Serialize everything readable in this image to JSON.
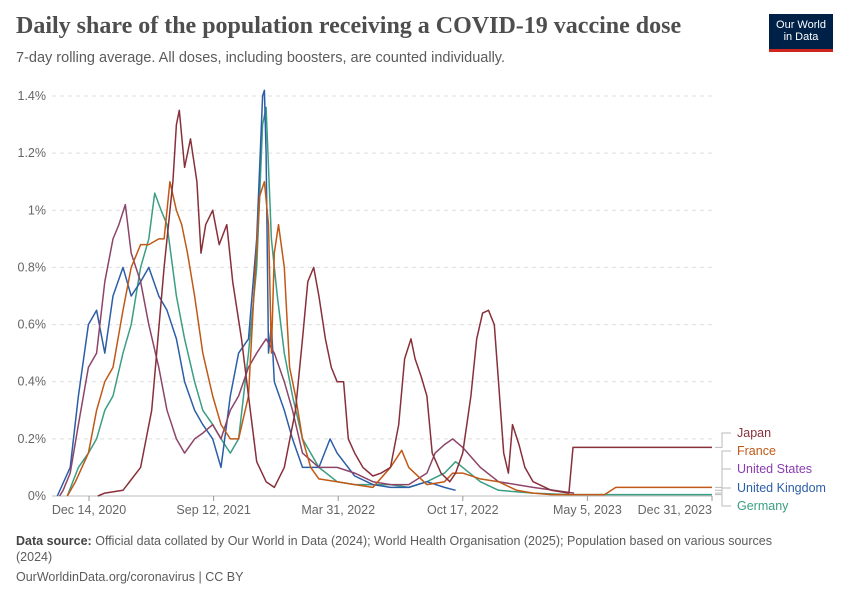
{
  "header": {
    "title": "Daily share of the population receiving a COVID-19 vaccine dose",
    "subtitle": "7-day rolling average. All doses, including boosters, are counted individually.",
    "logo_line1": "Our World",
    "logo_line2": "in Data"
  },
  "footer": {
    "source_label": "Data source:",
    "source_text": "Official data collated by Our World in Data (2024); World Health Organisation (2025); Population based on various sources (2024)",
    "url_line": "OurWorldinData.org/coronavirus | CC BY"
  },
  "colors": {
    "Japan": "#883039",
    "France": "#c05917",
    "United States": "#8c4569",
    "United Kingdom": "#2c5ea8",
    "Germany": "#3a9e83",
    "United States legend": "#8a3db0"
  },
  "chart_data": {
    "type": "line",
    "ylabel": "",
    "xlabel": "",
    "ylim": [
      0,
      1.4
    ],
    "y_unit": "%",
    "xlim": [
      "2020-12-01",
      "2023-12-31"
    ],
    "y_ticks": [
      "0%",
      "0.2%",
      "0.4%",
      "0.6%",
      "0.8%",
      "1%",
      "1.2%",
      "1.4%"
    ],
    "x_ticks": [
      "Dec 14, 2020",
      "Sep 12, 2021",
      "Mar 31, 2022",
      "Oct 17, 2022",
      "May 5, 2023",
      "Dec 31, 2023"
    ],
    "grid": "horizontal dashed",
    "legend_placement": "right",
    "series": [
      {
        "name": "Japan",
        "points": [
          [
            "2021-02-17",
            0
          ],
          [
            "2021-03-01",
            0.01
          ],
          [
            "2021-04-01",
            0.02
          ],
          [
            "2021-05-01",
            0.1
          ],
          [
            "2021-05-20",
            0.3
          ],
          [
            "2021-06-10",
            0.8
          ],
          [
            "2021-06-25",
            1.1
          ],
          [
            "2021-07-01",
            1.3
          ],
          [
            "2021-07-06",
            1.35
          ],
          [
            "2021-07-15",
            1.15
          ],
          [
            "2021-07-25",
            1.25
          ],
          [
            "2021-08-05",
            1.1
          ],
          [
            "2021-08-12",
            0.85
          ],
          [
            "2021-08-20",
            0.95
          ],
          [
            "2021-09-01",
            1.0
          ],
          [
            "2021-09-12",
            0.88
          ],
          [
            "2021-09-25",
            0.95
          ],
          [
            "2021-10-05",
            0.75
          ],
          [
            "2021-10-20",
            0.55
          ],
          [
            "2021-11-01",
            0.35
          ],
          [
            "2021-11-15",
            0.12
          ],
          [
            "2021-12-01",
            0.05
          ],
          [
            "2021-12-15",
            0.03
          ],
          [
            "2022-01-01",
            0.1
          ],
          [
            "2022-01-20",
            0.3
          ],
          [
            "2022-02-01",
            0.55
          ],
          [
            "2022-02-10",
            0.75
          ],
          [
            "2022-02-20",
            0.8
          ],
          [
            "2022-03-01",
            0.7
          ],
          [
            "2022-03-12",
            0.55
          ],
          [
            "2022-03-22",
            0.45
          ],
          [
            "2022-04-01",
            0.4
          ],
          [
            "2022-04-12",
            0.4
          ],
          [
            "2022-04-20",
            0.2
          ],
          [
            "2022-05-01",
            0.15
          ],
          [
            "2022-05-15",
            0.1
          ],
          [
            "2022-06-01",
            0.07
          ],
          [
            "2022-06-15",
            0.08
          ],
          [
            "2022-07-01",
            0.1
          ],
          [
            "2022-07-15",
            0.25
          ],
          [
            "2022-07-25",
            0.48
          ],
          [
            "2022-08-05",
            0.55
          ],
          [
            "2022-08-12",
            0.48
          ],
          [
            "2022-08-22",
            0.42
          ],
          [
            "2022-09-01",
            0.35
          ],
          [
            "2022-09-10",
            0.15
          ],
          [
            "2022-09-25",
            0.08
          ],
          [
            "2022-10-10",
            0.05
          ],
          [
            "2022-10-20",
            0.08
          ],
          [
            "2022-11-01",
            0.15
          ],
          [
            "2022-11-15",
            0.35
          ],
          [
            "2022-11-25",
            0.55
          ],
          [
            "2022-12-05",
            0.64
          ],
          [
            "2022-12-15",
            0.65
          ],
          [
            "2022-12-25",
            0.6
          ],
          [
            "2023-01-01",
            0.4
          ],
          [
            "2023-01-10",
            0.15
          ],
          [
            "2023-01-18",
            0.08
          ],
          [
            "2023-01-25",
            0.25
          ],
          [
            "2023-02-05",
            0.18
          ],
          [
            "2023-02-15",
            0.1
          ],
          [
            "2023-03-01",
            0.05
          ],
          [
            "2023-04-01",
            0.02
          ],
          [
            "2023-05-01",
            0.01
          ],
          [
            "2023-05-08",
            0.17
          ],
          [
            "2023-12-31",
            0.17
          ]
        ]
      },
      {
        "name": "France",
        "points": [
          [
            "2020-12-27",
            0
          ],
          [
            "2021-01-10",
            0.05
          ],
          [
            "2021-02-01",
            0.15
          ],
          [
            "2021-02-15",
            0.3
          ],
          [
            "2021-03-01",
            0.4
          ],
          [
            "2021-03-15",
            0.45
          ],
          [
            "2021-04-01",
            0.65
          ],
          [
            "2021-04-15",
            0.8
          ],
          [
            "2021-05-01",
            0.88
          ],
          [
            "2021-05-15",
            0.88
          ],
          [
            "2021-06-01",
            0.9
          ],
          [
            "2021-06-10",
            0.9
          ],
          [
            "2021-06-20",
            1.1
          ],
          [
            "2021-07-01",
            1.0
          ],
          [
            "2021-07-10",
            0.95
          ],
          [
            "2021-07-20",
            0.85
          ],
          [
            "2021-08-01",
            0.7
          ],
          [
            "2021-08-15",
            0.5
          ],
          [
            "2021-09-01",
            0.35
          ],
          [
            "2021-09-15",
            0.25
          ],
          [
            "2021-10-01",
            0.2
          ],
          [
            "2021-10-15",
            0.2
          ],
          [
            "2021-11-01",
            0.35
          ],
          [
            "2021-11-10",
            0.7
          ],
          [
            "2021-11-20",
            1.05
          ],
          [
            "2021-11-28",
            1.1
          ],
          [
            "2021-12-05",
            0.95
          ],
          [
            "2021-12-10",
            0.5
          ],
          [
            "2021-12-15",
            0.85
          ],
          [
            "2021-12-22",
            0.95
          ],
          [
            "2022-01-01",
            0.8
          ],
          [
            "2022-01-10",
            0.45
          ],
          [
            "2022-01-20",
            0.35
          ],
          [
            "2022-02-01",
            0.2
          ],
          [
            "2022-02-15",
            0.1
          ],
          [
            "2022-03-01",
            0.06
          ],
          [
            "2022-04-01",
            0.05
          ],
          [
            "2022-05-01",
            0.04
          ],
          [
            "2022-06-01",
            0.03
          ],
          [
            "2022-07-01",
            0.1
          ],
          [
            "2022-07-20",
            0.16
          ],
          [
            "2022-08-01",
            0.1
          ],
          [
            "2022-09-01",
            0.04
          ],
          [
            "2022-10-01",
            0.05
          ],
          [
            "2022-10-15",
            0.08
          ],
          [
            "2022-11-01",
            0.08
          ],
          [
            "2022-12-01",
            0.06
          ],
          [
            "2023-01-01",
            0.05
          ],
          [
            "2023-02-01",
            0.02
          ],
          [
            "2023-03-01",
            0.01
          ],
          [
            "2023-04-01",
            0.005
          ],
          [
            "2023-07-01",
            0.005
          ],
          [
            "2023-07-20",
            0.03
          ],
          [
            "2023-12-31",
            0.03
          ]
        ]
      },
      {
        "name": "United States",
        "points": [
          [
            "2020-12-14",
            0
          ],
          [
            "2020-12-20",
            0.02
          ],
          [
            "2021-01-01",
            0.08
          ],
          [
            "2021-01-15",
            0.25
          ],
          [
            "2021-02-01",
            0.45
          ],
          [
            "2021-02-15",
            0.5
          ],
          [
            "2021-03-01",
            0.75
          ],
          [
            "2021-03-15",
            0.9
          ],
          [
            "2021-03-25",
            0.95
          ],
          [
            "2021-04-05",
            1.02
          ],
          [
            "2021-04-15",
            0.85
          ],
          [
            "2021-05-01",
            0.75
          ],
          [
            "2021-05-15",
            0.6
          ],
          [
            "2021-06-01",
            0.45
          ],
          [
            "2021-06-15",
            0.3
          ],
          [
            "2021-07-01",
            0.2
          ],
          [
            "2021-07-15",
            0.15
          ],
          [
            "2021-08-01",
            0.2
          ],
          [
            "2021-08-15",
            0.22
          ],
          [
            "2021-09-01",
            0.25
          ],
          [
            "2021-09-15",
            0.2
          ],
          [
            "2021-10-01",
            0.3
          ],
          [
            "2021-10-15",
            0.35
          ],
          [
            "2021-11-01",
            0.45
          ],
          [
            "2021-11-15",
            0.5
          ],
          [
            "2021-12-01",
            0.55
          ],
          [
            "2021-12-15",
            0.5
          ],
          [
            "2022-01-01",
            0.4
          ],
          [
            "2022-01-15",
            0.3
          ],
          [
            "2022-02-01",
            0.15
          ],
          [
            "2022-03-01",
            0.1
          ],
          [
            "2022-04-01",
            0.1
          ],
          [
            "2022-05-01",
            0.08
          ],
          [
            "2022-06-01",
            0.05
          ],
          [
            "2022-07-01",
            0.04
          ],
          [
            "2022-08-01",
            0.04
          ],
          [
            "2022-09-01",
            0.08
          ],
          [
            "2022-09-15",
            0.15
          ],
          [
            "2022-10-01",
            0.18
          ],
          [
            "2022-10-15",
            0.2
          ],
          [
            "2022-11-01",
            0.17
          ],
          [
            "2022-12-01",
            0.1
          ],
          [
            "2023-01-01",
            0.05
          ],
          [
            "2023-03-01",
            0.03
          ],
          [
            "2023-05-10",
            0.01
          ]
        ]
      },
      {
        "name": "United Kingdom",
        "points": [
          [
            "2020-12-10",
            0
          ],
          [
            "2021-01-01",
            0.1
          ],
          [
            "2021-01-15",
            0.35
          ],
          [
            "2021-02-01",
            0.6
          ],
          [
            "2021-02-15",
            0.65
          ],
          [
            "2021-03-01",
            0.5
          ],
          [
            "2021-03-15",
            0.7
          ],
          [
            "2021-04-01",
            0.8
          ],
          [
            "2021-04-15",
            0.7
          ],
          [
            "2021-05-01",
            0.75
          ],
          [
            "2021-05-15",
            0.8
          ],
          [
            "2021-06-01",
            0.7
          ],
          [
            "2021-06-15",
            0.65
          ],
          [
            "2021-07-01",
            0.55
          ],
          [
            "2021-07-15",
            0.4
          ],
          [
            "2021-08-01",
            0.3
          ],
          [
            "2021-08-15",
            0.25
          ],
          [
            "2021-09-01",
            0.2
          ],
          [
            "2021-09-15",
            0.1
          ],
          [
            "2021-10-01",
            0.35
          ],
          [
            "2021-10-15",
            0.5
          ],
          [
            "2021-11-01",
            0.55
          ],
          [
            "2021-11-15",
            0.9
          ],
          [
            "2021-11-25",
            1.4
          ],
          [
            "2021-11-28",
            1.42
          ],
          [
            "2021-12-01",
            1.2
          ],
          [
            "2021-12-05",
            0.5
          ],
          [
            "2021-12-10",
            0.6
          ],
          [
            "2021-12-15",
            0.4
          ],
          [
            "2022-01-01",
            0.3
          ],
          [
            "2022-01-15",
            0.2
          ],
          [
            "2022-02-01",
            0.1
          ],
          [
            "2022-03-01",
            0.1
          ],
          [
            "2022-03-20",
            0.2
          ],
          [
            "2022-04-01",
            0.15
          ],
          [
            "2022-05-01",
            0.07
          ],
          [
            "2022-06-01",
            0.04
          ],
          [
            "2022-07-01",
            0.03
          ],
          [
            "2022-08-01",
            0.03
          ],
          [
            "2022-09-01",
            0.05
          ],
          [
            "2022-10-01",
            0.03
          ],
          [
            "2022-10-20",
            0.02
          ]
        ]
      },
      {
        "name": "Germany",
        "points": [
          [
            "2020-12-27",
            0
          ],
          [
            "2021-01-15",
            0.1
          ],
          [
            "2021-02-01",
            0.15
          ],
          [
            "2021-02-15",
            0.2
          ],
          [
            "2021-03-01",
            0.3
          ],
          [
            "2021-03-15",
            0.35
          ],
          [
            "2021-04-01",
            0.5
          ],
          [
            "2021-04-15",
            0.6
          ],
          [
            "2021-05-01",
            0.8
          ],
          [
            "2021-05-15",
            0.9
          ],
          [
            "2021-05-25",
            1.06
          ],
          [
            "2021-06-05",
            1.0
          ],
          [
            "2021-06-15",
            0.95
          ],
          [
            "2021-07-01",
            0.7
          ],
          [
            "2021-07-15",
            0.55
          ],
          [
            "2021-08-01",
            0.4
          ],
          [
            "2021-08-15",
            0.3
          ],
          [
            "2021-09-01",
            0.25
          ],
          [
            "2021-09-15",
            0.2
          ],
          [
            "2021-10-01",
            0.15
          ],
          [
            "2021-10-15",
            0.2
          ],
          [
            "2021-11-01",
            0.5
          ],
          [
            "2021-11-15",
            0.8
          ],
          [
            "2021-11-25",
            1.3
          ],
          [
            "2021-12-01",
            1.36
          ],
          [
            "2021-12-10",
            0.9
          ],
          [
            "2021-12-20",
            0.7
          ],
          [
            "2022-01-01",
            0.5
          ],
          [
            "2022-01-15",
            0.35
          ],
          [
            "2022-02-01",
            0.2
          ],
          [
            "2022-03-01",
            0.1
          ],
          [
            "2022-04-01",
            0.05
          ],
          [
            "2022-05-01",
            0.04
          ],
          [
            "2022-06-01",
            0.04
          ],
          [
            "2022-07-01",
            0.04
          ],
          [
            "2022-08-01",
            0.03
          ],
          [
            "2022-09-01",
            0.05
          ],
          [
            "2022-10-01",
            0.08
          ],
          [
            "2022-10-20",
            0.12
          ],
          [
            "2022-11-01",
            0.1
          ],
          [
            "2022-12-01",
            0.05
          ],
          [
            "2023-01-01",
            0.02
          ],
          [
            "2023-03-01",
            0.01
          ],
          [
            "2023-05-01",
            0.005
          ],
          [
            "2023-12-31",
            0.005
          ]
        ]
      }
    ],
    "legend": [
      "Japan",
      "France",
      "United States",
      "United Kingdom",
      "Germany"
    ]
  }
}
